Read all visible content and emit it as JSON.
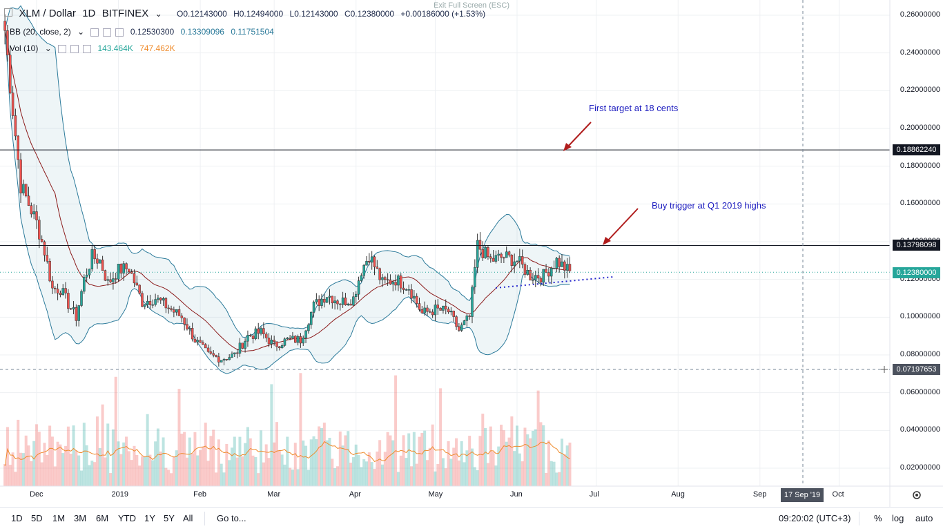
{
  "header": {
    "symbol": "XLM / Dollar",
    "interval": "1D",
    "exchange": "BITFINEX",
    "open": "O0.12143000",
    "high": "H0.12494000",
    "low": "L0.12143000",
    "close": "C0.12380000",
    "change": "+0.00186000 (+1.53%)",
    "exit_fullscreen": "Exit Full Screen (ESC)"
  },
  "indicators": {
    "bb": {
      "label": "BB (20, close, 2)",
      "basis": "0.12530300",
      "upper": "0.13309096",
      "lower": "0.11751504"
    },
    "vol": {
      "label": "Vol (10)",
      "value": "143.464K",
      "ma": "747.462K"
    }
  },
  "annotations": {
    "first_target": "First target at 18 cents",
    "buy_trigger": "Buy trigger at Q1 2019 highs"
  },
  "price_tags": {
    "level_high": "0.18862240",
    "level_mid": "0.13798098",
    "last": "0.12380000",
    "crosshair": "0.07197653"
  },
  "time_axis": {
    "labels": [
      "Dec",
      "2019",
      "Feb",
      "Mar",
      "Apr",
      "May",
      "Jun",
      "Jul",
      "Aug",
      "Sep",
      "Oct"
    ],
    "crosshair_date": "17 Sep '19"
  },
  "price_axis": {
    "labels": [
      "0.26000000",
      "0.24000000",
      "0.22000000",
      "0.20000000",
      "0.18000000",
      "0.16000000",
      "0.14000000",
      "0.12000000",
      "0.10000000",
      "0.08000000",
      "0.06000000",
      "0.04000000",
      "0.02000000"
    ]
  },
  "footer": {
    "ranges": [
      "1D",
      "5D",
      "1M",
      "3M",
      "6M",
      "YTD",
      "1Y",
      "5Y",
      "All"
    ],
    "goto": "Go to...",
    "clock": "09:20:02 (UTC+3)",
    "percent": "%",
    "log": "log",
    "auto": "auto"
  },
  "colors": {
    "up": "#26a69a",
    "down": "#ef5350",
    "bb_band": "#2b7a9a",
    "basis": "#8b1a1a",
    "vol_ma": "#ef8a2a",
    "annotation": "#1b1bbf",
    "arrow": "#b01c1c"
  },
  "chart_data": {
    "type": "candlestick",
    "title": "XLM / Dollar 1D BITFINEX",
    "ylim": [
      0,
      0.27
    ],
    "horizontal_levels": [
      0.1886224,
      0.13798098
    ],
    "support_trendline": [
      [
        "2019-05-24",
        0.115
      ],
      [
        "2019-06-30",
        0.121
      ]
    ],
    "close_series": [
      [
        "2018-11-19",
        0.252
      ],
      [
        "2018-11-22",
        0.21
      ],
      [
        "2018-11-25",
        0.17
      ],
      [
        "2018-11-28",
        0.16
      ],
      [
        "2018-12-01",
        0.15
      ],
      [
        "2018-12-04",
        0.135
      ],
      [
        "2018-12-07",
        0.115
      ],
      [
        "2018-12-10",
        0.115
      ],
      [
        "2018-12-13",
        0.107
      ],
      [
        "2018-12-16",
        0.1
      ],
      [
        "2018-12-19",
        0.12
      ],
      [
        "2018-12-22",
        0.132
      ],
      [
        "2018-12-25",
        0.13
      ],
      [
        "2018-12-28",
        0.118
      ],
      [
        "2019-01-01",
        0.125
      ],
      [
        "2019-01-05",
        0.126
      ],
      [
        "2019-01-10",
        0.108
      ],
      [
        "2019-01-15",
        0.11
      ],
      [
        "2019-01-20",
        0.105
      ],
      [
        "2019-01-25",
        0.1
      ],
      [
        "2019-01-30",
        0.088
      ],
      [
        "2019-02-04",
        0.08
      ],
      [
        "2019-02-09",
        0.078
      ],
      [
        "2019-02-14",
        0.08
      ],
      [
        "2019-02-19",
        0.09
      ],
      [
        "2019-02-24",
        0.092
      ],
      [
        "2019-03-01",
        0.085
      ],
      [
        "2019-03-06",
        0.088
      ],
      [
        "2019-03-11",
        0.088
      ],
      [
        "2019-03-16",
        0.106
      ],
      [
        "2019-03-21",
        0.112
      ],
      [
        "2019-03-26",
        0.108
      ],
      [
        "2019-03-31",
        0.11
      ],
      [
        "2019-04-03",
        0.125
      ],
      [
        "2019-04-06",
        0.133
      ],
      [
        "2019-04-11",
        0.118
      ],
      [
        "2019-04-16",
        0.12
      ],
      [
        "2019-04-21",
        0.116
      ],
      [
        "2019-04-26",
        0.102
      ],
      [
        "2019-05-01",
        0.104
      ],
      [
        "2019-05-06",
        0.103
      ],
      [
        "2019-05-10",
        0.093
      ],
      [
        "2019-05-14",
        0.1
      ],
      [
        "2019-05-17",
        0.138
      ],
      [
        "2019-05-22",
        0.13
      ],
      [
        "2019-05-27",
        0.132
      ],
      [
        "2019-06-01",
        0.13
      ],
      [
        "2019-06-06",
        0.122
      ],
      [
        "2019-06-11",
        0.122
      ],
      [
        "2019-06-16",
        0.13
      ],
      [
        "2019-06-21",
        0.1238
      ]
    ]
  }
}
